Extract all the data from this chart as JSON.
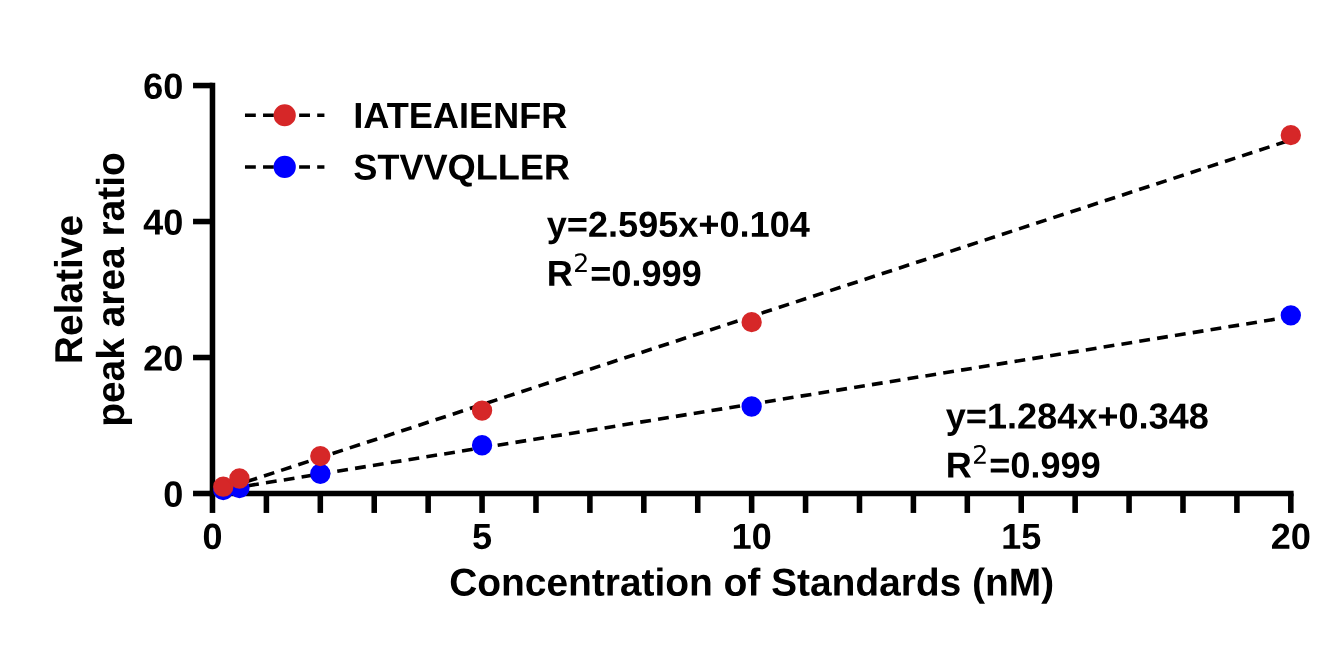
{
  "chart_data": {
    "type": "scatter",
    "xlabel": "Concentration of Standards (nM)",
    "ylabel": "Relative\npeak area ratio",
    "xlim": [
      0,
      20
    ],
    "ylim": [
      0,
      60
    ],
    "xticks": [
      0,
      {
        "value": 1,
        "label": null
      },
      {
        "value": 2,
        "label": null
      },
      {
        "value": 3,
        "label": null
      },
      {
        "value": 4,
        "label": null
      },
      5,
      {
        "value": 6,
        "label": null
      },
      {
        "value": 7,
        "label": null
      },
      {
        "value": 8,
        "label": null
      },
      {
        "value": 9,
        "label": null
      },
      10,
      {
        "value": 11,
        "label": null
      },
      {
        "value": 12,
        "label": null
      },
      {
        "value": 13,
        "label": null
      },
      {
        "value": 14,
        "label": null
      },
      15,
      {
        "value": 16,
        "label": null
      },
      {
        "value": 17,
        "label": null
      },
      {
        "value": 18,
        "label": null
      },
      {
        "value": 19,
        "label": null
      },
      20
    ],
    "yticks": [
      0,
      20,
      40,
      60
    ],
    "grid": false,
    "legend": "top left",
    "marker": "circle",
    "series": [
      {
        "name": "IATEAIENFR",
        "color": "#d62728",
        "x": [
          0.2,
          0.5,
          2,
          5,
          10,
          20
        ],
        "values": [
          1.0,
          2.2,
          5.5,
          12.2,
          25.2,
          52.7
        ],
        "line_style": "dashed"
      },
      {
        "name": "STVVQLLER",
        "color": "#0000ff",
        "x": [
          0.2,
          0.5,
          2,
          5,
          10,
          20
        ],
        "values": [
          0.5,
          0.8,
          2.9,
          7.1,
          12.8,
          26.2
        ],
        "line_style": "dashed"
      },
      {
        "type": "line",
        "color": "#000000",
        "x": [
          0,
          20
        ],
        "values": [
          0.1,
          52.0
        ],
        "line_style": "dashed",
        "marker": "none"
      },
      {
        "type": "line",
        "color": "#000000",
        "x": [
          0,
          20
        ],
        "values": [
          0.3,
          26.0
        ],
        "line_style": "dashed",
        "marker": "none"
      }
    ],
    "annotations": [
      "y=2.595x+0.104\nR$^{2}$=0.999",
      "y=1.284x+0.348\nR$^{2}$=0.999"
    ]
  }
}
